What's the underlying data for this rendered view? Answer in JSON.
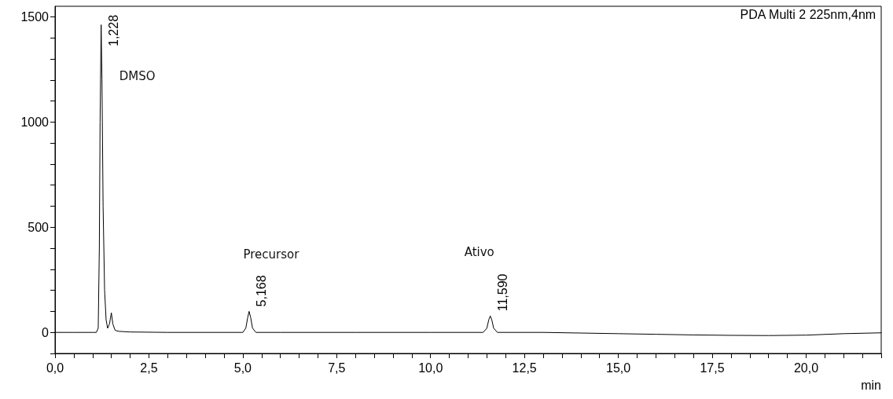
{
  "chart_data": {
    "type": "line",
    "title": "PDA Multi 2 225nm,4nm",
    "xlabel": "min",
    "series": [
      {
        "color": "#000000",
        "x": [
          0,
          0.5,
          1.0,
          1.1,
          1.15,
          1.18,
          1.2,
          1.228,
          1.25,
          1.28,
          1.32,
          1.36,
          1.4,
          1.45,
          1.5,
          1.54,
          1.6,
          1.7,
          2.0,
          3.0,
          4.0,
          5.0,
          5.08,
          5.13,
          5.168,
          5.21,
          5.26,
          5.35,
          6.0,
          8.0,
          10.0,
          11.4,
          11.5,
          11.55,
          11.59,
          11.63,
          11.68,
          11.78,
          13.0,
          14.0,
          15.0,
          16.0,
          17.0,
          18.0,
          19.0,
          20.0,
          21.0,
          22.0
        ],
        "values": [
          0,
          0,
          0,
          0,
          20,
          400,
          1000,
          1462,
          1200,
          600,
          200,
          60,
          20,
          40,
          93,
          40,
          10,
          5,
          2,
          0,
          0,
          0,
          20,
          70,
          100,
          70,
          20,
          0,
          0,
          0,
          0,
          0,
          20,
          60,
          78,
          60,
          20,
          0,
          0,
          -3,
          -6,
          -9,
          -12,
          -14,
          -15,
          -13,
          -6,
          -2
        ]
      }
    ],
    "xlim": [
      0,
      22
    ],
    "ylim": [
      -100,
      1550
    ],
    "xticks": [
      {
        "value": 0,
        "label": "0,0"
      },
      {
        "value": 0.5,
        "label": null
      },
      {
        "value": 1,
        "label": null
      },
      {
        "value": 1.5,
        "label": null
      },
      {
        "value": 2,
        "label": null
      },
      {
        "value": 2.5,
        "label": "2,5"
      },
      {
        "value": 3,
        "label": null
      },
      {
        "value": 3.5,
        "label": null
      },
      {
        "value": 4,
        "label": null
      },
      {
        "value": 4.5,
        "label": null
      },
      {
        "value": 5,
        "label": "5,0"
      },
      {
        "value": 5.5,
        "label": null
      },
      {
        "value": 6,
        "label": null
      },
      {
        "value": 6.5,
        "label": null
      },
      {
        "value": 7,
        "label": null
      },
      {
        "value": 7.5,
        "label": "7,5"
      },
      {
        "value": 8,
        "label": null
      },
      {
        "value": 8.5,
        "label": null
      },
      {
        "value": 9,
        "label": null
      },
      {
        "value": 9.5,
        "label": null
      },
      {
        "value": 10,
        "label": "10,0"
      },
      {
        "value": 10.5,
        "label": null
      },
      {
        "value": 11,
        "label": null
      },
      {
        "value": 11.5,
        "label": null
      },
      {
        "value": 12,
        "label": null
      },
      {
        "value": 12.5,
        "label": "12,5"
      },
      {
        "value": 13,
        "label": null
      },
      {
        "value": 13.5,
        "label": null
      },
      {
        "value": 14,
        "label": null
      },
      {
        "value": 14.5,
        "label": null
      },
      {
        "value": 15,
        "label": "15,0"
      },
      {
        "value": 15.5,
        "label": null
      },
      {
        "value": 16,
        "label": null
      },
      {
        "value": 16.5,
        "label": null
      },
      {
        "value": 17,
        "label": null
      },
      {
        "value": 17.5,
        "label": "17,5"
      },
      {
        "value": 18,
        "label": null
      },
      {
        "value": 18.5,
        "label": null
      },
      {
        "value": 19,
        "label": null
      },
      {
        "value": 19.5,
        "label": null
      },
      {
        "value": 20,
        "label": "20,0"
      },
      {
        "value": 20.5,
        "label": null
      },
      {
        "value": 21,
        "label": null
      },
      {
        "value": 21.5,
        "label": null
      },
      {
        "value": 22,
        "label": null
      }
    ],
    "yticks": [
      {
        "value": -100,
        "label": null
      },
      0,
      {
        "value": 100,
        "label": null
      },
      {
        "value": 200,
        "label": null
      },
      {
        "value": 300,
        "label": null
      },
      {
        "value": 400,
        "label": null
      },
      500,
      {
        "value": 600,
        "label": null
      },
      {
        "value": 700,
        "label": null
      },
      {
        "value": 800,
        "label": null
      },
      {
        "value": 900,
        "label": null
      },
      1000,
      {
        "value": 1100,
        "label": null
      },
      {
        "value": 1200,
        "label": null
      },
      {
        "value": 1300,
        "label": null
      },
      {
        "value": 1400,
        "label": null
      },
      1500
    ],
    "annotations": [
      {
        "text": "1,228",
        "x": 1.228,
        "y": 1462
      },
      {
        "text": "5,168",
        "x": 5.168,
        "y": 100
      },
      {
        "text": "11,590",
        "x": 11.59,
        "y": 78
      },
      "DMSO",
      "Precursor",
      "Ativo"
    ],
    "marker": "none",
    "line_style": "solid"
  }
}
